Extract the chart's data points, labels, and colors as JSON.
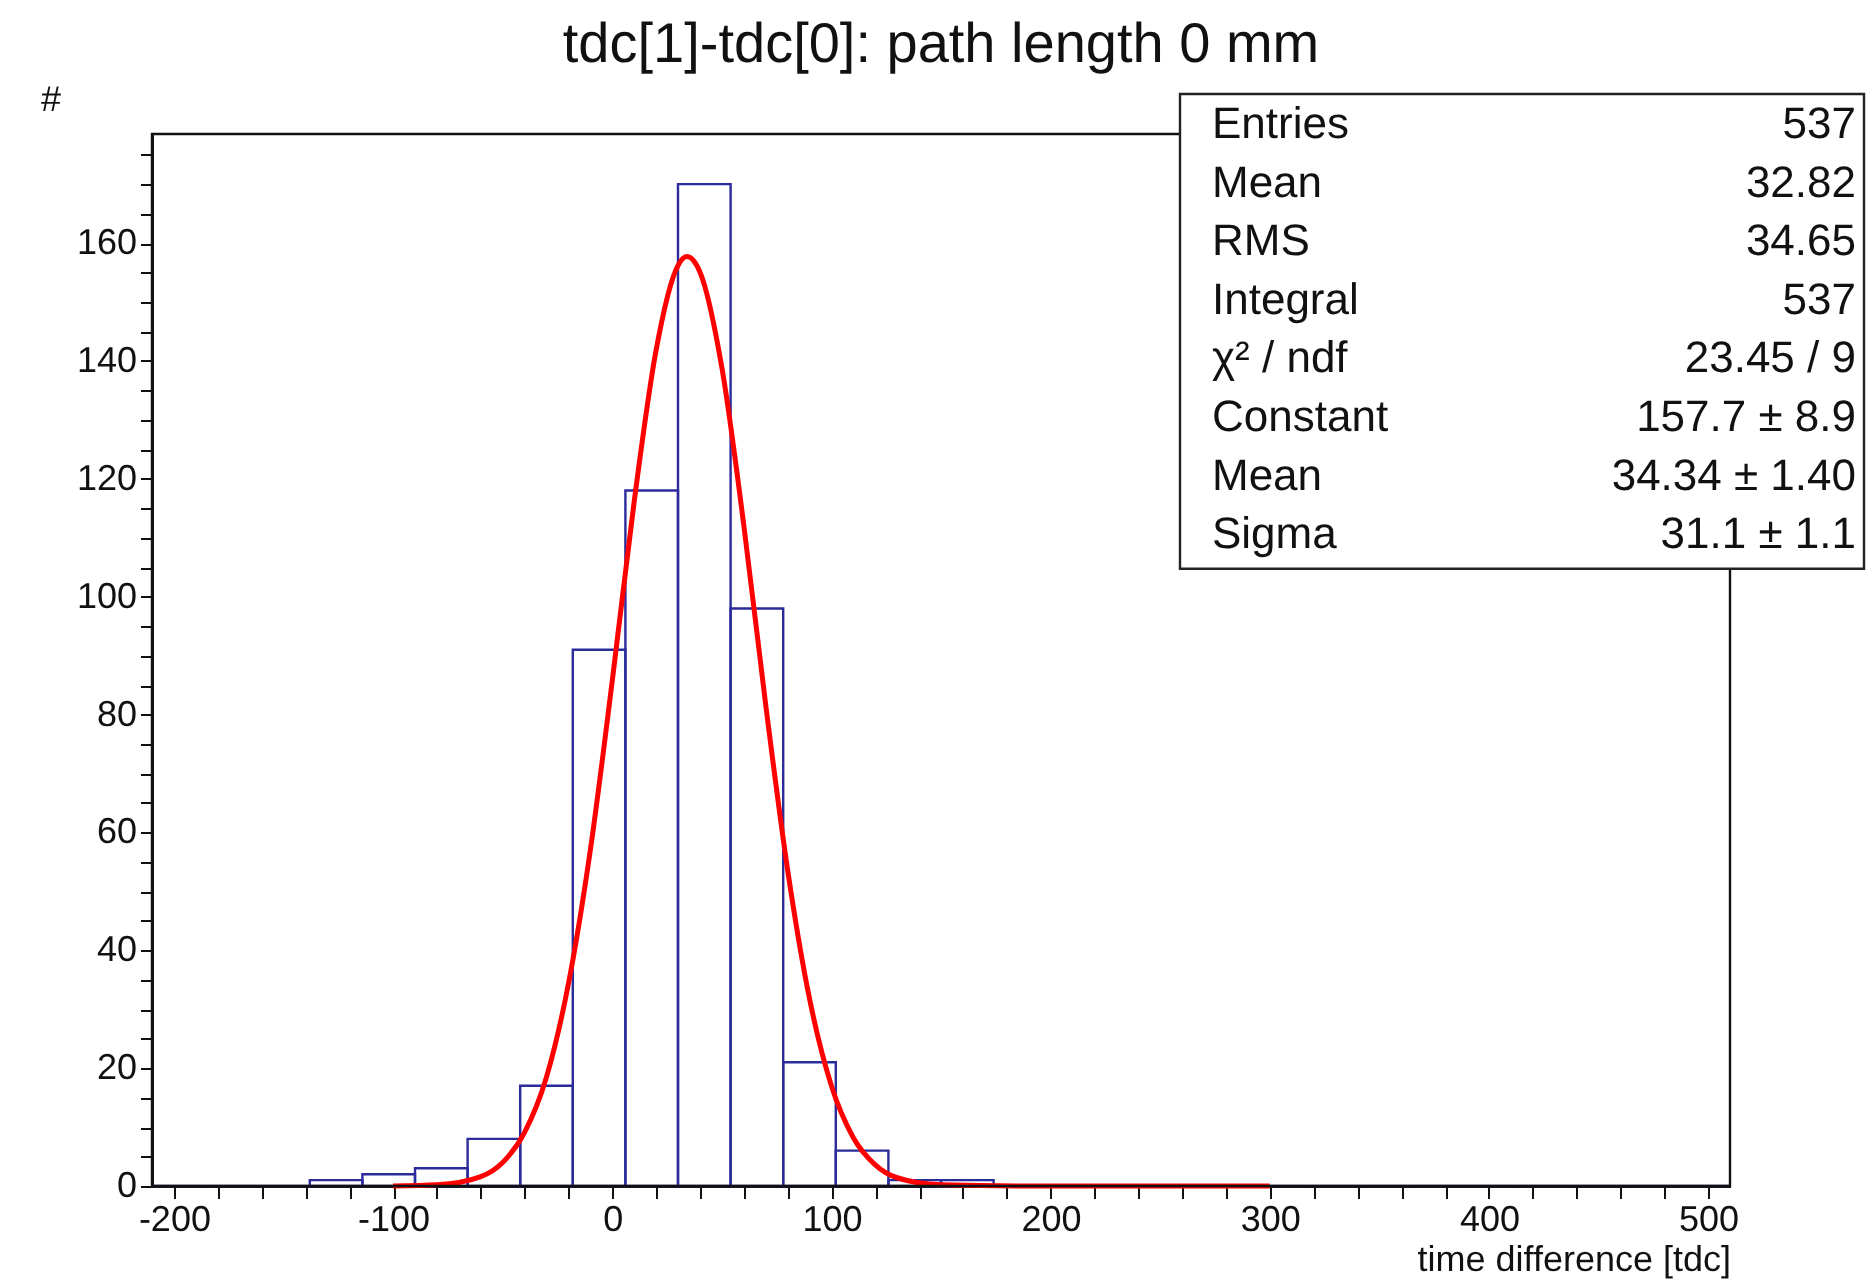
{
  "chart_data": {
    "type": "histogram",
    "title": "tdc[1]-tdc[0]: path length 0 mm",
    "xlabel": "time difference [tdc]",
    "ylabel": "#",
    "bins": [
      -210,
      -186,
      -162,
      -138,
      -114,
      -90,
      -66,
      -42,
      -18,
      6,
      30,
      54,
      78,
      102,
      126,
      150,
      174,
      198,
      222,
      246,
      270,
      294,
      318,
      342,
      366,
      390,
      414,
      438,
      462,
      486,
      510
    ],
    "series": [
      {
        "color": "#2b2b9b",
        "values": [
          0,
          0,
          0,
          1,
          2,
          3,
          8,
          17,
          91,
          118,
          170,
          98,
          21,
          6,
          1,
          1,
          0,
          0,
          0,
          0,
          0,
          0,
          0,
          0,
          0,
          0,
          0,
          0,
          0,
          0
        ]
      },
      {
        "type": "line",
        "color": "#ff0000",
        "x": [
          -100,
          -80,
          -60,
          -50,
          -40,
          -30,
          -20,
          -10,
          0,
          10,
          20,
          30,
          34,
          40,
          50,
          60,
          70,
          80,
          90,
          100,
          110,
          120,
          130,
          150,
          200,
          300
        ],
        "values": [
          0,
          0.2,
          1.6,
          4,
          9.1,
          18.5,
          34.3,
          57,
          85.7,
          116.1,
          141.8,
          156.2,
          157.7,
          155.1,
          138.9,
          112.2,
          81.7,
          53.7,
          31.8,
          17,
          8.2,
          3.6,
          1.4,
          0.2,
          0,
          0
        ]
      }
    ],
    "xlim": [
      -210,
      510
    ],
    "ylim": [
      0,
      178.5
    ],
    "xticks": [
      -200,
      {
        "value": -180,
        "label": null
      },
      {
        "value": -160,
        "label": null
      },
      {
        "value": -140,
        "label": null
      },
      {
        "value": -120,
        "label": null
      },
      -100,
      {
        "value": -80,
        "label": null
      },
      {
        "value": -60,
        "label": null
      },
      {
        "value": -40,
        "label": null
      },
      {
        "value": -20,
        "label": null
      },
      0,
      {
        "value": 20,
        "label": null
      },
      {
        "value": 40,
        "label": null
      },
      {
        "value": 60,
        "label": null
      },
      {
        "value": 80,
        "label": null
      },
      100,
      {
        "value": 120,
        "label": null
      },
      {
        "value": 140,
        "label": null
      },
      {
        "value": 160,
        "label": null
      },
      {
        "value": 180,
        "label": null
      },
      200,
      {
        "value": 220,
        "label": null
      },
      {
        "value": 240,
        "label": null
      },
      {
        "value": 260,
        "label": null
      },
      {
        "value": 280,
        "label": null
      },
      300,
      {
        "value": 320,
        "label": null
      },
      {
        "value": 340,
        "label": null
      },
      {
        "value": 360,
        "label": null
      },
      {
        "value": 380,
        "label": null
      },
      400,
      {
        "value": 420,
        "label": null
      },
      {
        "value": 440,
        "label": null
      },
      {
        "value": 460,
        "label": null
      },
      {
        "value": 480,
        "label": null
      },
      500
    ],
    "yticks": [
      0,
      {
        "value": 5,
        "label": null
      },
      {
        "value": 10,
        "label": null
      },
      {
        "value": 15,
        "label": null
      },
      20,
      {
        "value": 25,
        "label": null
      },
      {
        "value": 30,
        "label": null
      },
      {
        "value": 35,
        "label": null
      },
      40,
      {
        "value": 45,
        "label": null
      },
      {
        "value": 50,
        "label": null
      },
      {
        "value": 55,
        "label": null
      },
      60,
      {
        "value": 65,
        "label": null
      },
      {
        "value": 70,
        "label": null
      },
      {
        "value": 75,
        "label": null
      },
      80,
      {
        "value": 85,
        "label": null
      },
      {
        "value": 90,
        "label": null
      },
      {
        "value": 95,
        "label": null
      },
      100,
      {
        "value": 105,
        "label": null
      },
      {
        "value": 110,
        "label": null
      },
      {
        "value": 115,
        "label": null
      },
      120,
      {
        "value": 125,
        "label": null
      },
      {
        "value": 130,
        "label": null
      },
      {
        "value": 135,
        "label": null
      },
      140,
      {
        "value": 145,
        "label": null
      },
      {
        "value": 150,
        "label": null
      },
      {
        "value": 155,
        "label": null
      },
      160,
      {
        "value": 165,
        "label": null
      },
      {
        "value": 170,
        "label": null
      },
      {
        "value": 175,
        "label": null
      }
    ],
    "annotations": [
      "Entries",
      "537",
      "Mean",
      "32.82",
      "RMS",
      "34.65",
      "Integral",
      "537",
      "χ² / ndf",
      "23.45 / 9",
      "Constant",
      "157.7 ± 8.9",
      "Mean",
      "34.34 ± 1.40",
      "Sigma",
      "31.1 ± 1.1"
    ]
  }
}
